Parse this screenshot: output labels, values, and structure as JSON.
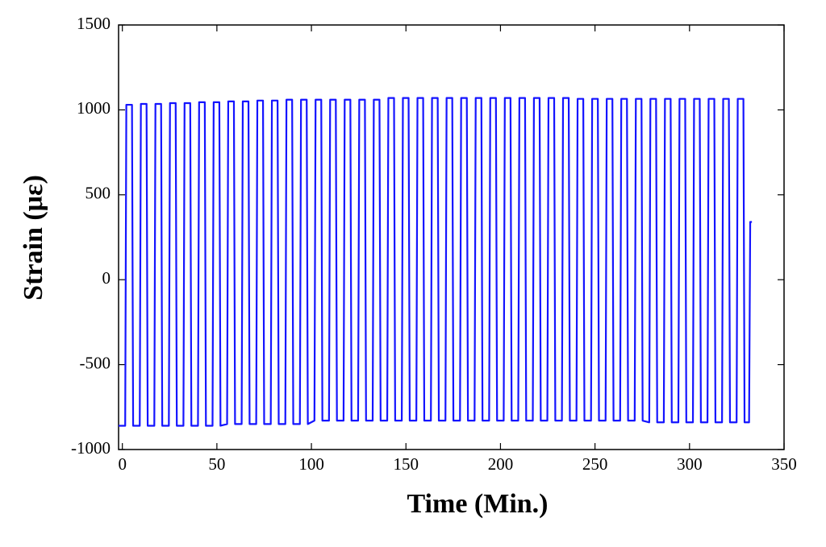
{
  "chart_data": {
    "type": "line",
    "xlabel": "Time (Min.)",
    "ylabel": "Strain (με)",
    "color": "#1414ff",
    "xlim": [
      -2,
      350
    ],
    "xticks": [
      0,
      50,
      100,
      150,
      200,
      250,
      300,
      350
    ],
    "ylim": [
      -1000,
      1500
    ],
    "yticks": [
      -1000,
      -500,
      0,
      500,
      1000,
      1500
    ],
    "x": [
      -2,
      1.5,
      2.1,
      5.1,
      5.7,
      9.2,
      9.8,
      12.8,
      13.4,
      16.9,
      17.5,
      20.5,
      21.1,
      24.6,
      25.2,
      28.2,
      28.8,
      32.3,
      32.9,
      35.9,
      36.5,
      40,
      40.6,
      43.6,
      44.2,
      47.7,
      48.3,
      51.3,
      51.9,
      55.4,
      56,
      59,
      59.6,
      63.1,
      63.7,
      66.7,
      67.3,
      70.8,
      71.4,
      74.4,
      75,
      78.5,
      79.1,
      82.1,
      82.7,
      86.2,
      86.8,
      89.8,
      90.4,
      93.9,
      94.5,
      97.5,
      98.1,
      101.6,
      102.2,
      105.2,
      105.8,
      109.3,
      109.9,
      112.9,
      113.5,
      117,
      117.6,
      120.6,
      121.2,
      124.7,
      125.3,
      128.3,
      128.9,
      132.4,
      133,
      136,
      136.6,
      140.1,
      140.7,
      143.7,
      144.3,
      147.8,
      148.4,
      151.4,
      152,
      155.5,
      156.1,
      159.1,
      159.7,
      163.2,
      163.8,
      166.8,
      167.4,
      170.9,
      171.5,
      174.5,
      175.1,
      178.6,
      179.2,
      182.2,
      182.8,
      186.3,
      186.9,
      189.9,
      190.5,
      194,
      194.6,
      197.6,
      198.2,
      201.7,
      202.3,
      205.3,
      205.9,
      209.4,
      210,
      213,
      213.6,
      217.1,
      217.7,
      220.7,
      221.3,
      224.8,
      225.4,
      228.4,
      229,
      232.5,
      233.1,
      236.1,
      236.7,
      240.2,
      240.8,
      243.8,
      244.4,
      247.9,
      248.5,
      251.5,
      252.1,
      255.6,
      256.2,
      259.2,
      259.8,
      263.3,
      263.9,
      266.9,
      267.5,
      271,
      271.6,
      274.6,
      275.2,
      278.7,
      279.3,
      282.3,
      282.9,
      286.4,
      287,
      290,
      290.6,
      294.1,
      294.7,
      297.7,
      298.3,
      301.8,
      302.4,
      305.4,
      306,
      309.5,
      310.1,
      313.1,
      313.7,
      317.2,
      317.8,
      320.8,
      321.4,
      324.9,
      325.5,
      328.5,
      329.1,
      331.5,
      332.1,
      333
    ],
    "values": [
      -860,
      -860,
      1030,
      1030,
      -860,
      -860,
      1035,
      1035,
      -860,
      -860,
      1035,
      1035,
      -860,
      -860,
      1040,
      1040,
      -860,
      -860,
      1040,
      1040,
      -860,
      -860,
      1045,
      1045,
      -860,
      -860,
      1045,
      1045,
      -860,
      -850,
      1050,
      1050,
      -850,
      -850,
      1050,
      1050,
      -850,
      -850,
      1055,
      1055,
      -850,
      -850,
      1055,
      1055,
      -850,
      -850,
      1060,
      1060,
      -850,
      -850,
      1060,
      1060,
      -850,
      -830,
      1060,
      1060,
      -830,
      -830,
      1060,
      1060,
      -830,
      -830,
      1060,
      1060,
      -830,
      -830,
      1060,
      1060,
      -830,
      -830,
      1060,
      1060,
      -830,
      -830,
      1070,
      1070,
      -830,
      -830,
      1070,
      1070,
      -830,
      -830,
      1070,
      1070,
      -830,
      -830,
      1070,
      1070,
      -830,
      -830,
      1070,
      1070,
      -830,
      -830,
      1070,
      1070,
      -830,
      -830,
      1070,
      1070,
      -830,
      -830,
      1070,
      1070,
      -830,
      -830,
      1070,
      1070,
      -830,
      -830,
      1070,
      1070,
      -830,
      -830,
      1070,
      1070,
      -830,
      -830,
      1070,
      1070,
      -830,
      -830,
      1070,
      1070,
      -830,
      -830,
      1065,
      1065,
      -830,
      -830,
      1065,
      1065,
      -830,
      -830,
      1065,
      1065,
      -830,
      -830,
      1065,
      1065,
      -830,
      -830,
      1065,
      1065,
      -830,
      -840,
      1065,
      1065,
      -840,
      -840,
      1065,
      1065,
      -840,
      -840,
      1065,
      1065,
      -840,
      -840,
      1065,
      1065,
      -840,
      -840,
      1065,
      1065,
      -840,
      -840,
      1065,
      1065,
      -840,
      -840,
      1065,
      1065,
      -840,
      -840,
      340,
      340
    ]
  }
}
